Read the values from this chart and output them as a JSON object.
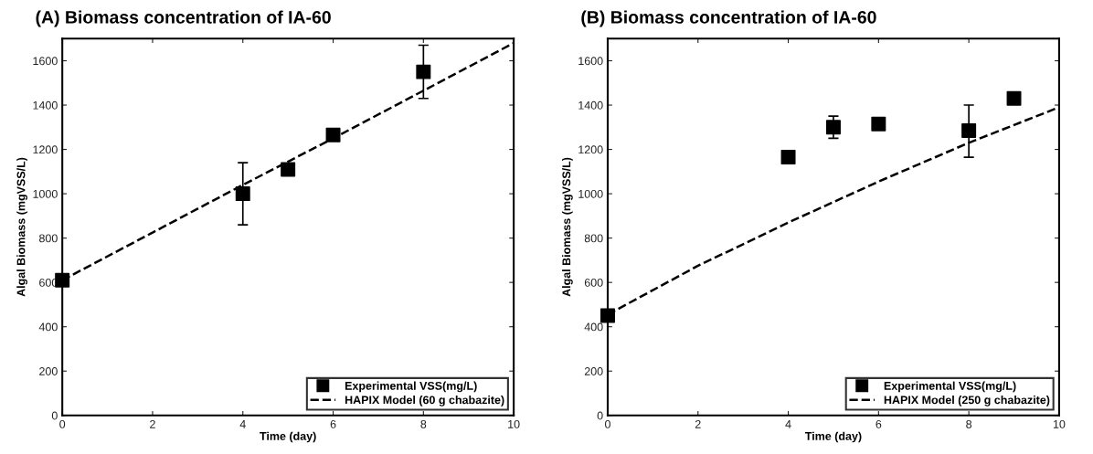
{
  "chart_data": [
    {
      "type": "scatter",
      "title": "(A) Biomass concentration of IA-60",
      "xlabel": "Time (day)",
      "ylabel": "Algal Biomass (mgVSS/L)",
      "xlim": [
        0,
        10
      ],
      "xticks": [
        0,
        2,
        4,
        6,
        8,
        10
      ],
      "ylim": [
        0,
        1700
      ],
      "yticks": [
        0,
        200,
        400,
        600,
        800,
        1000,
        1200,
        1400,
        1600
      ],
      "legend": "bottom right",
      "grid": false,
      "series": [
        {
          "name": "Experimental VSS(mg/L)",
          "marker": "square",
          "color": "#000000",
          "x": [
            0,
            4,
            5,
            6,
            8
          ],
          "values": [
            610,
            1000,
            1110,
            1265,
            1550
          ],
          "errors": [
            null,
            140,
            null,
            null,
            [
              1430,
              1670
            ]
          ]
        },
        {
          "name": "HAPIX Model (60 g chabazite)",
          "type": "line",
          "line_style": "dashed",
          "color": "#000000",
          "x": [
            0,
            2,
            4,
            6,
            8,
            10
          ],
          "values": [
            610,
            825,
            1040,
            1250,
            1465,
            1680
          ]
        }
      ]
    },
    {
      "type": "scatter",
      "title": "(B) Biomass concentration of IA-60",
      "xlabel": "Time (day)",
      "ylabel": "Algal Biomass (mgVSS/L)",
      "xlim": [
        0,
        10
      ],
      "xticks": [
        0,
        2,
        4,
        6,
        8,
        10
      ],
      "ylim": [
        0,
        1700
      ],
      "yticks": [
        0,
        200,
        400,
        600,
        800,
        1000,
        1200,
        1400,
        1600
      ],
      "legend": "bottom right",
      "grid": false,
      "series": [
        {
          "name": "Experimental VSS(mg/L)",
          "marker": "square",
          "color": "#000000",
          "x": [
            0,
            4,
            5,
            6,
            8,
            9
          ],
          "values": [
            450,
            1165,
            1300,
            1315,
            1285,
            1430
          ],
          "errors": [
            null,
            null,
            50,
            null,
            [
              1165,
              1400
            ],
            null
          ]
        },
        {
          "name": "HAPIX Model (250 g chabazite)",
          "type": "line",
          "line_style": "dashed",
          "color": "#000000",
          "x": [
            0,
            2,
            4,
            6,
            8,
            10
          ],
          "values": [
            455,
            675,
            870,
            1055,
            1230,
            1390
          ]
        }
      ]
    }
  ]
}
